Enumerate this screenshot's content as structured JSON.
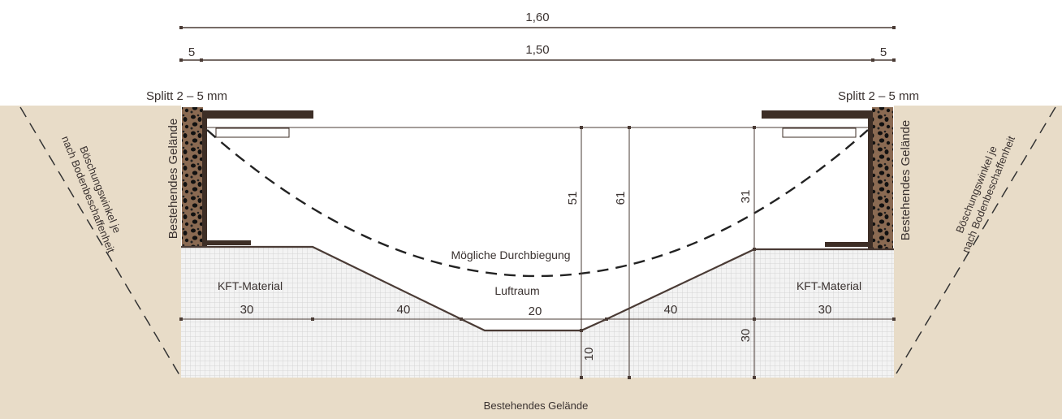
{
  "dimensions": {
    "total_width": "1,60",
    "inner_width": "1,50",
    "left_margin": "5",
    "right_margin": "5",
    "left_segment": "30",
    "left_slope": "40",
    "center_bottom": "20",
    "right_slope": "40",
    "right_segment": "30",
    "height_51": "51",
    "height_61": "61",
    "height_31": "31",
    "depth_10": "10",
    "depth_30": "30"
  },
  "labels": {
    "split_left": "Splitt 2 – 5 mm",
    "split_right": "Splitt 2 – 5 mm",
    "terrain_left": "Bestehendes Gelände",
    "terrain_right": "Bestehendes Gelände",
    "terrain_bottom": "Bestehendes Gelände",
    "slope_left_line1": "Böschungswinkel je",
    "slope_left_line2": "nach Bodenbeschaffenheit",
    "slope_right_line1": "Böschungswinkel je",
    "slope_right_line2": "nach Bodenbeschaffenheit",
    "kft_left": "KFT-Material",
    "kft_right": "KFT-Material",
    "deflection": "Mögliche Durchbiegung",
    "air_space": "Luftraum"
  },
  "colors": {
    "ground": "#e8dcc8",
    "line": "#4a3b35",
    "gravel": "#7a5a44",
    "frame": "#3d2e26",
    "grid": "#d9d9d9",
    "grid_bg": "#f2f2f2"
  }
}
